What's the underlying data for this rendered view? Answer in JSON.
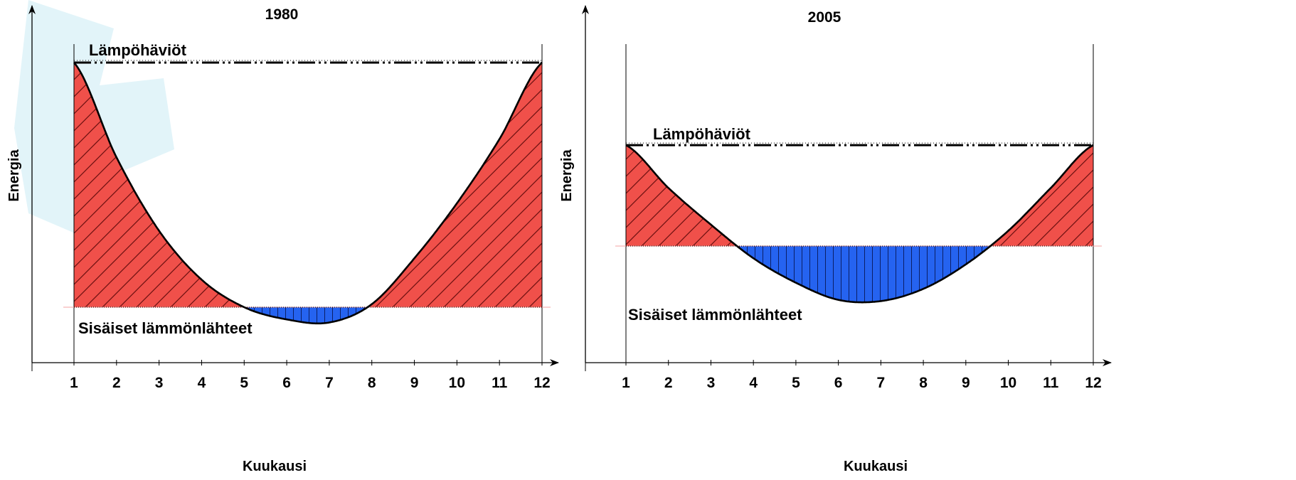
{
  "colors": {
    "heating": "#f0504a",
    "surplus": "#2563f0",
    "watermark": "#e2f4f9",
    "curve": "#000000"
  },
  "chart_data": [
    {
      "type": "area",
      "title": "1980",
      "xlabel": "Kuukausi",
      "ylabel": "Energia",
      "categories": [
        "1",
        "2",
        "3",
        "4",
        "5",
        "6",
        "7",
        "8",
        "9",
        "10",
        "11",
        "12"
      ],
      "xlim": [
        1,
        12
      ],
      "ylim": [
        0,
        100
      ],
      "annotations": {
        "losses": "Lämpöhäviöt",
        "internal": "Sisäiset lämmönlähteet"
      },
      "loss_level": 100,
      "internal_level": 20,
      "series": [
        {
          "values": [
            100,
            69,
            45,
            29,
            20,
            16,
            15,
            21,
            36,
            54,
            75,
            100
          ]
        }
      ]
    },
    {
      "type": "area",
      "title": "2005",
      "xlabel": "Kuukausi",
      "ylabel": "Energia",
      "categories": [
        "1",
        "2",
        "3",
        "4",
        "5",
        "6",
        "7",
        "8",
        "9",
        "10",
        "11",
        "12"
      ],
      "xlim": [
        1,
        12
      ],
      "ylim": [
        0,
        100
      ],
      "annotations": {
        "losses": "Lämpöhäviöt",
        "internal": "Sisäiset lämmönlähteet"
      },
      "loss_level": 73,
      "internal_level": 40,
      "series": [
        {
          "values": [
            73,
            59,
            47,
            36,
            28,
            22.4,
            22,
            26,
            34,
            45,
            59,
            73
          ]
        }
      ]
    }
  ]
}
